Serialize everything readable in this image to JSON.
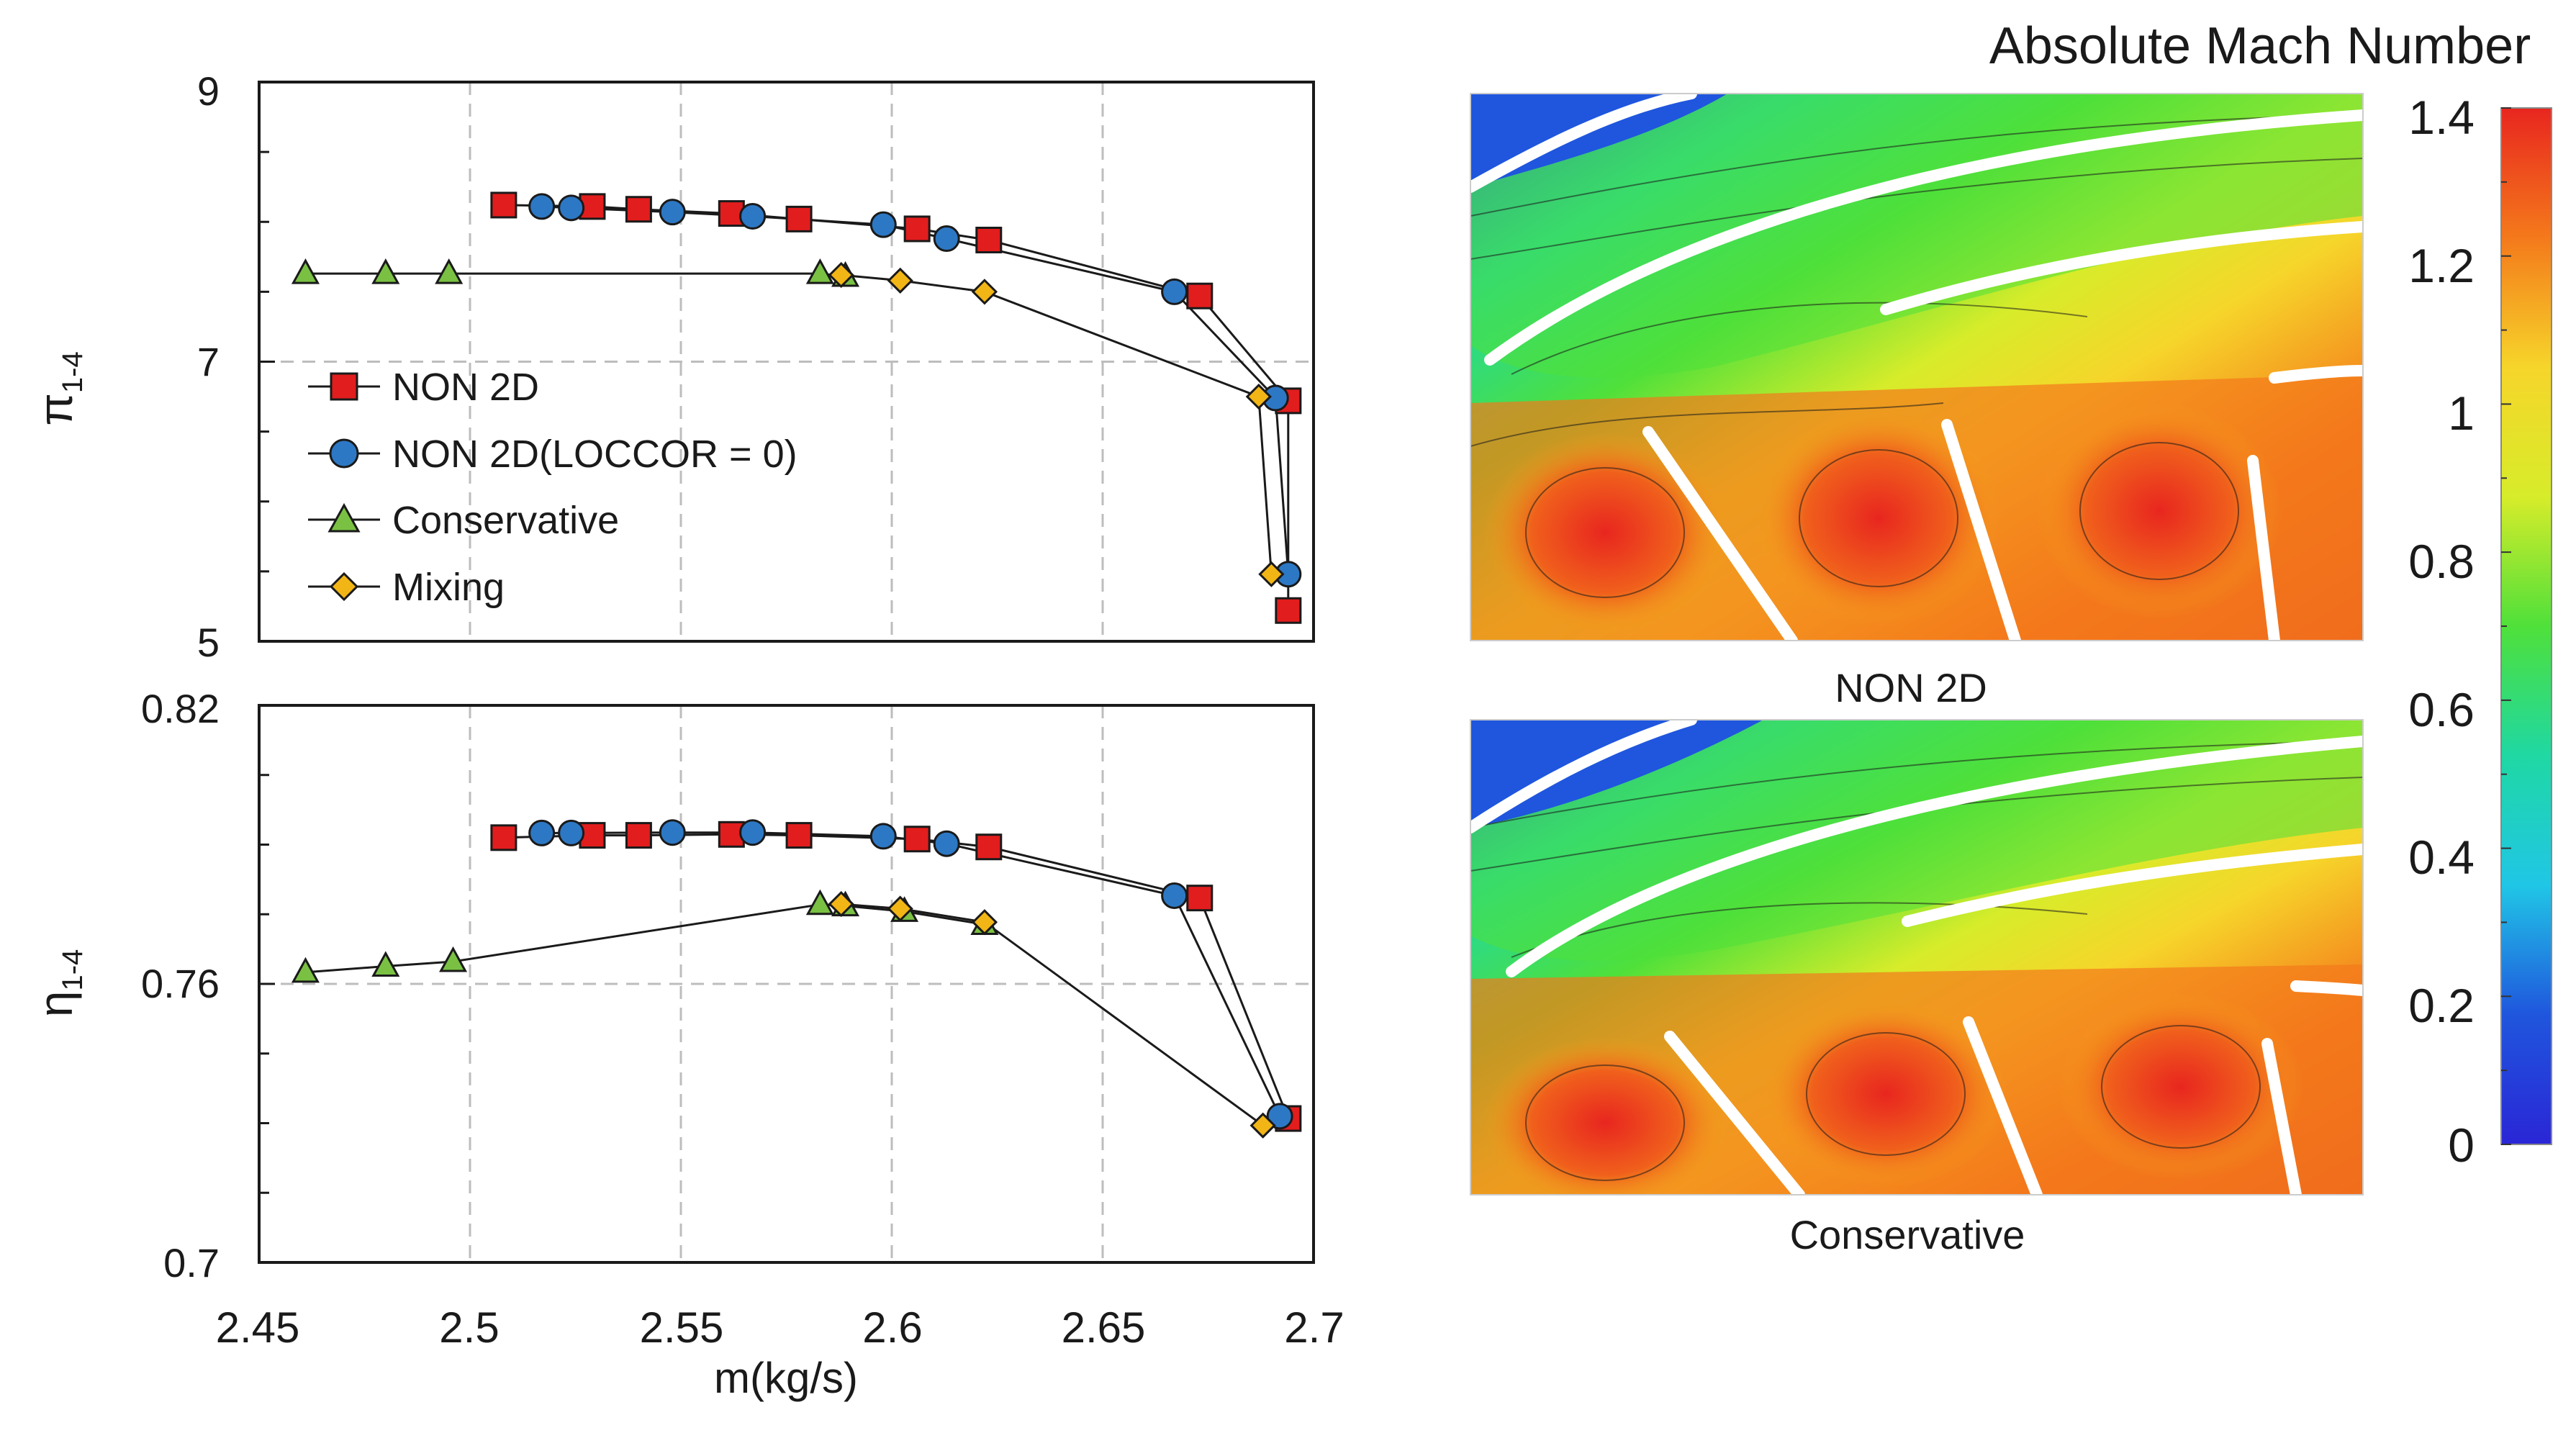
{
  "chart_data": [
    {
      "type": "line",
      "ylabel": "π1-4",
      "ylabel_main": "π",
      "ylabel_sub": "1-4",
      "xlim": [
        2.45,
        2.7
      ],
      "ylim": [
        5,
        9
      ],
      "yticks": [
        "9",
        "7",
        "5"
      ],
      "grid": true,
      "legend_position": "left-center",
      "series": [
        {
          "name": "NON 2D",
          "marker": "square",
          "color": "#e21d1d",
          "x": [
            2.508,
            2.529,
            2.54,
            2.562,
            2.578,
            2.606,
            2.623,
            2.673,
            2.694,
            2.694
          ],
          "y": [
            8.12,
            8.11,
            8.09,
            8.06,
            8.02,
            7.95,
            7.87,
            7.47,
            6.72,
            5.22
          ]
        },
        {
          "name": "NON 2D(LOCCOR = 0)",
          "marker": "circle",
          "color": "#2d78c4",
          "x": [
            2.517,
            2.524,
            2.548,
            2.567,
            2.598,
            2.613,
            2.667,
            2.691,
            2.694
          ],
          "y": [
            8.11,
            8.1,
            8.07,
            8.04,
            7.98,
            7.88,
            7.5,
            6.74,
            5.48
          ]
        },
        {
          "name": "Conservative",
          "marker": "triangle",
          "color": "#7ac143",
          "x": [
            2.461,
            2.48,
            2.495,
            2.583,
            2.589
          ],
          "y": [
            7.63,
            7.63,
            7.63,
            7.63,
            7.61
          ]
        },
        {
          "name": "Mixing",
          "marker": "diamond",
          "color": "#f2b516",
          "x": [
            2.588,
            2.602,
            2.622,
            2.687,
            2.69
          ],
          "y": [
            7.62,
            7.58,
            7.5,
            6.75,
            5.48
          ]
        }
      ]
    },
    {
      "type": "line",
      "xlabel": "m(kg/s)",
      "ylabel": "η1-4",
      "ylabel_main": "η",
      "ylabel_sub": "1-4",
      "xlim": [
        2.45,
        2.7
      ],
      "ylim": [
        0.7,
        0.82
      ],
      "xticks": [
        "2.45",
        "2.5",
        "2.55",
        "2.6",
        "2.65",
        "2.7"
      ],
      "yticks": [
        "0.82",
        "0.76",
        "0.7"
      ],
      "grid": true,
      "series": [
        {
          "name": "NON 2D",
          "marker": "square",
          "color": "#e21d1d",
          "x": [
            2.508,
            2.529,
            2.54,
            2.562,
            2.578,
            2.606,
            2.623,
            2.673,
            2.694
          ],
          "y": [
            0.7915,
            0.792,
            0.792,
            0.7922,
            0.792,
            0.7912,
            0.7895,
            0.7785,
            0.731
          ]
        },
        {
          "name": "NON 2D(LOCCOR = 0)",
          "marker": "circle",
          "color": "#2d78c4",
          "x": [
            2.517,
            2.524,
            2.548,
            2.567,
            2.598,
            2.613,
            2.667,
            2.692
          ],
          "y": [
            0.7925,
            0.7925,
            0.7926,
            0.7926,
            0.7918,
            0.7902,
            0.779,
            0.7315
          ]
        },
        {
          "name": "Conservative",
          "marker": "triangle",
          "color": "#7ac143",
          "x": [
            2.461,
            2.48,
            2.496,
            2.583,
            2.589,
            2.603,
            2.622
          ],
          "y": [
            0.7625,
            0.7638,
            0.7648,
            0.7771,
            0.7768,
            0.7756,
            0.7728
          ]
        },
        {
          "name": "Mixing",
          "marker": "diamond",
          "color": "#f2b516",
          "x": [
            2.588,
            2.602,
            2.622,
            2.688
          ],
          "y": [
            0.7772,
            0.7762,
            0.7733,
            0.7295
          ]
        }
      ]
    }
  ],
  "contours": {
    "colorbar_title": "Absolute Mach Number",
    "colorbar_ticks": [
      "1.4",
      "1.2",
      "1",
      "0.8",
      "0.6",
      "0.4",
      "0.2",
      "0"
    ],
    "colorbar_colors": [
      "#e8261f",
      "#f4791b",
      "#f6d52a",
      "#d7ec2a",
      "#4fe03a",
      "#1fd8a3",
      "#20c6e6",
      "#1f56dd",
      "#2a26d6"
    ],
    "panels": [
      {
        "caption": "NON 2D"
      },
      {
        "caption": "Conservative"
      }
    ]
  }
}
